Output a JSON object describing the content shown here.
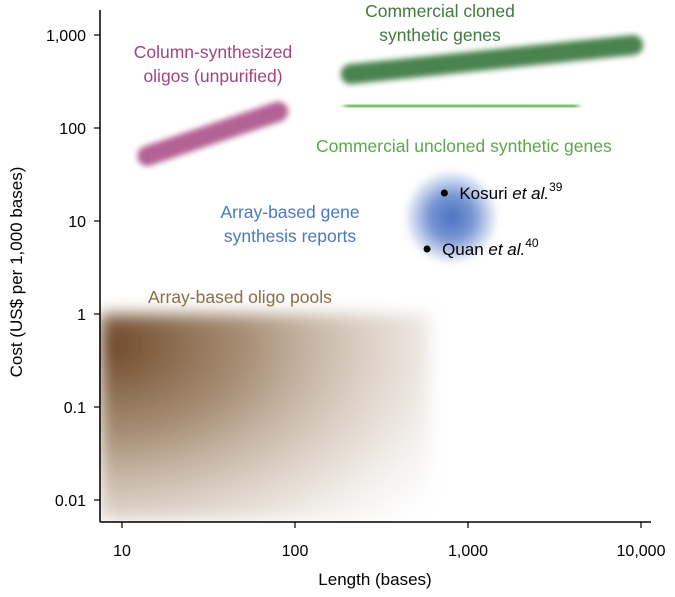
{
  "chart_data": {
    "type": "scatter",
    "title": "",
    "xlabel": "Length (bases)",
    "ylabel": "Cost (US$ per 1,000 bases)",
    "xscale": "log",
    "yscale": "log",
    "xlim": [
      7.5,
      11500
    ],
    "ylim": [
      0.006,
      1800
    ],
    "grid": false,
    "x_ticks": [
      {
        "value": 10,
        "label": "10"
      },
      {
        "value": 100,
        "label": "100"
      },
      {
        "value": 1000,
        "label": "1,000"
      },
      {
        "value": 10000,
        "label": "10,000"
      }
    ],
    "y_ticks": [
      {
        "value": 1000,
        "label": "1,000"
      },
      {
        "value": 100,
        "label": "100"
      },
      {
        "value": 10,
        "label": "10"
      },
      {
        "value": 1,
        "label": "1"
      },
      {
        "value": 0.1,
        "label": "0.1"
      },
      {
        "value": 0.01,
        "label": "0.01"
      }
    ],
    "regions": [
      {
        "label": "Column-synthesized oligos (unpurified)",
        "lines": [
          "Column-synthesized",
          "oligos (unpurified)"
        ],
        "shape": "band",
        "from": [
          14,
          50
        ],
        "to": [
          80,
          150
        ],
        "color": "#b05a8e"
      },
      {
        "label": "Commercial cloned synthetic genes",
        "lines": [
          "Commercial cloned",
          "synthetic genes"
        ],
        "shape": "band",
        "from": [
          210,
          380
        ],
        "to": [
          9000,
          780
        ],
        "color": "#3f7d45"
      },
      {
        "label": "Commercial uncloned synthetic genes",
        "lines": [
          "Commercial uncloned synthetic genes"
        ],
        "shape": "band",
        "from": [
          210,
          170
        ],
        "to": [
          4000,
          175
        ],
        "color": "#72c060"
      },
      {
        "label": "Array-based gene synthesis reports",
        "lines": [
          "Array-based gene",
          "synthesis reports"
        ],
        "shape": "blob",
        "center": [
          800,
          11
        ],
        "color": "#4a72c4"
      },
      {
        "label": "Array-based oligo pools",
        "lines": [
          "Array-based oligo pools"
        ],
        "shape": "box",
        "x_range": [
          7.5,
          600
        ],
        "y_range": [
          0.006,
          1
        ],
        "color": "#6b4424"
      }
    ],
    "points": [
      {
        "name": "Kosuri",
        "x": 730,
        "y": 20,
        "label": "Kosuri",
        "italic": "et al.",
        "ref": "39"
      },
      {
        "name": "Quan",
        "x": 580,
        "y": 5,
        "label": "Quan",
        "italic": "et al.",
        "ref": "40"
      }
    ],
    "label_colors": {
      "Column-synthesized oligos (unpurified)": "#a2457d",
      "Commercial cloned synthetic genes": "#3f7a3f",
      "Commercial uncloned synthetic genes": "#5aa84c",
      "Array-based gene synthesis reports": "#4a78c2",
      "Array-based oligo pools": "#8e6c48"
    }
  }
}
